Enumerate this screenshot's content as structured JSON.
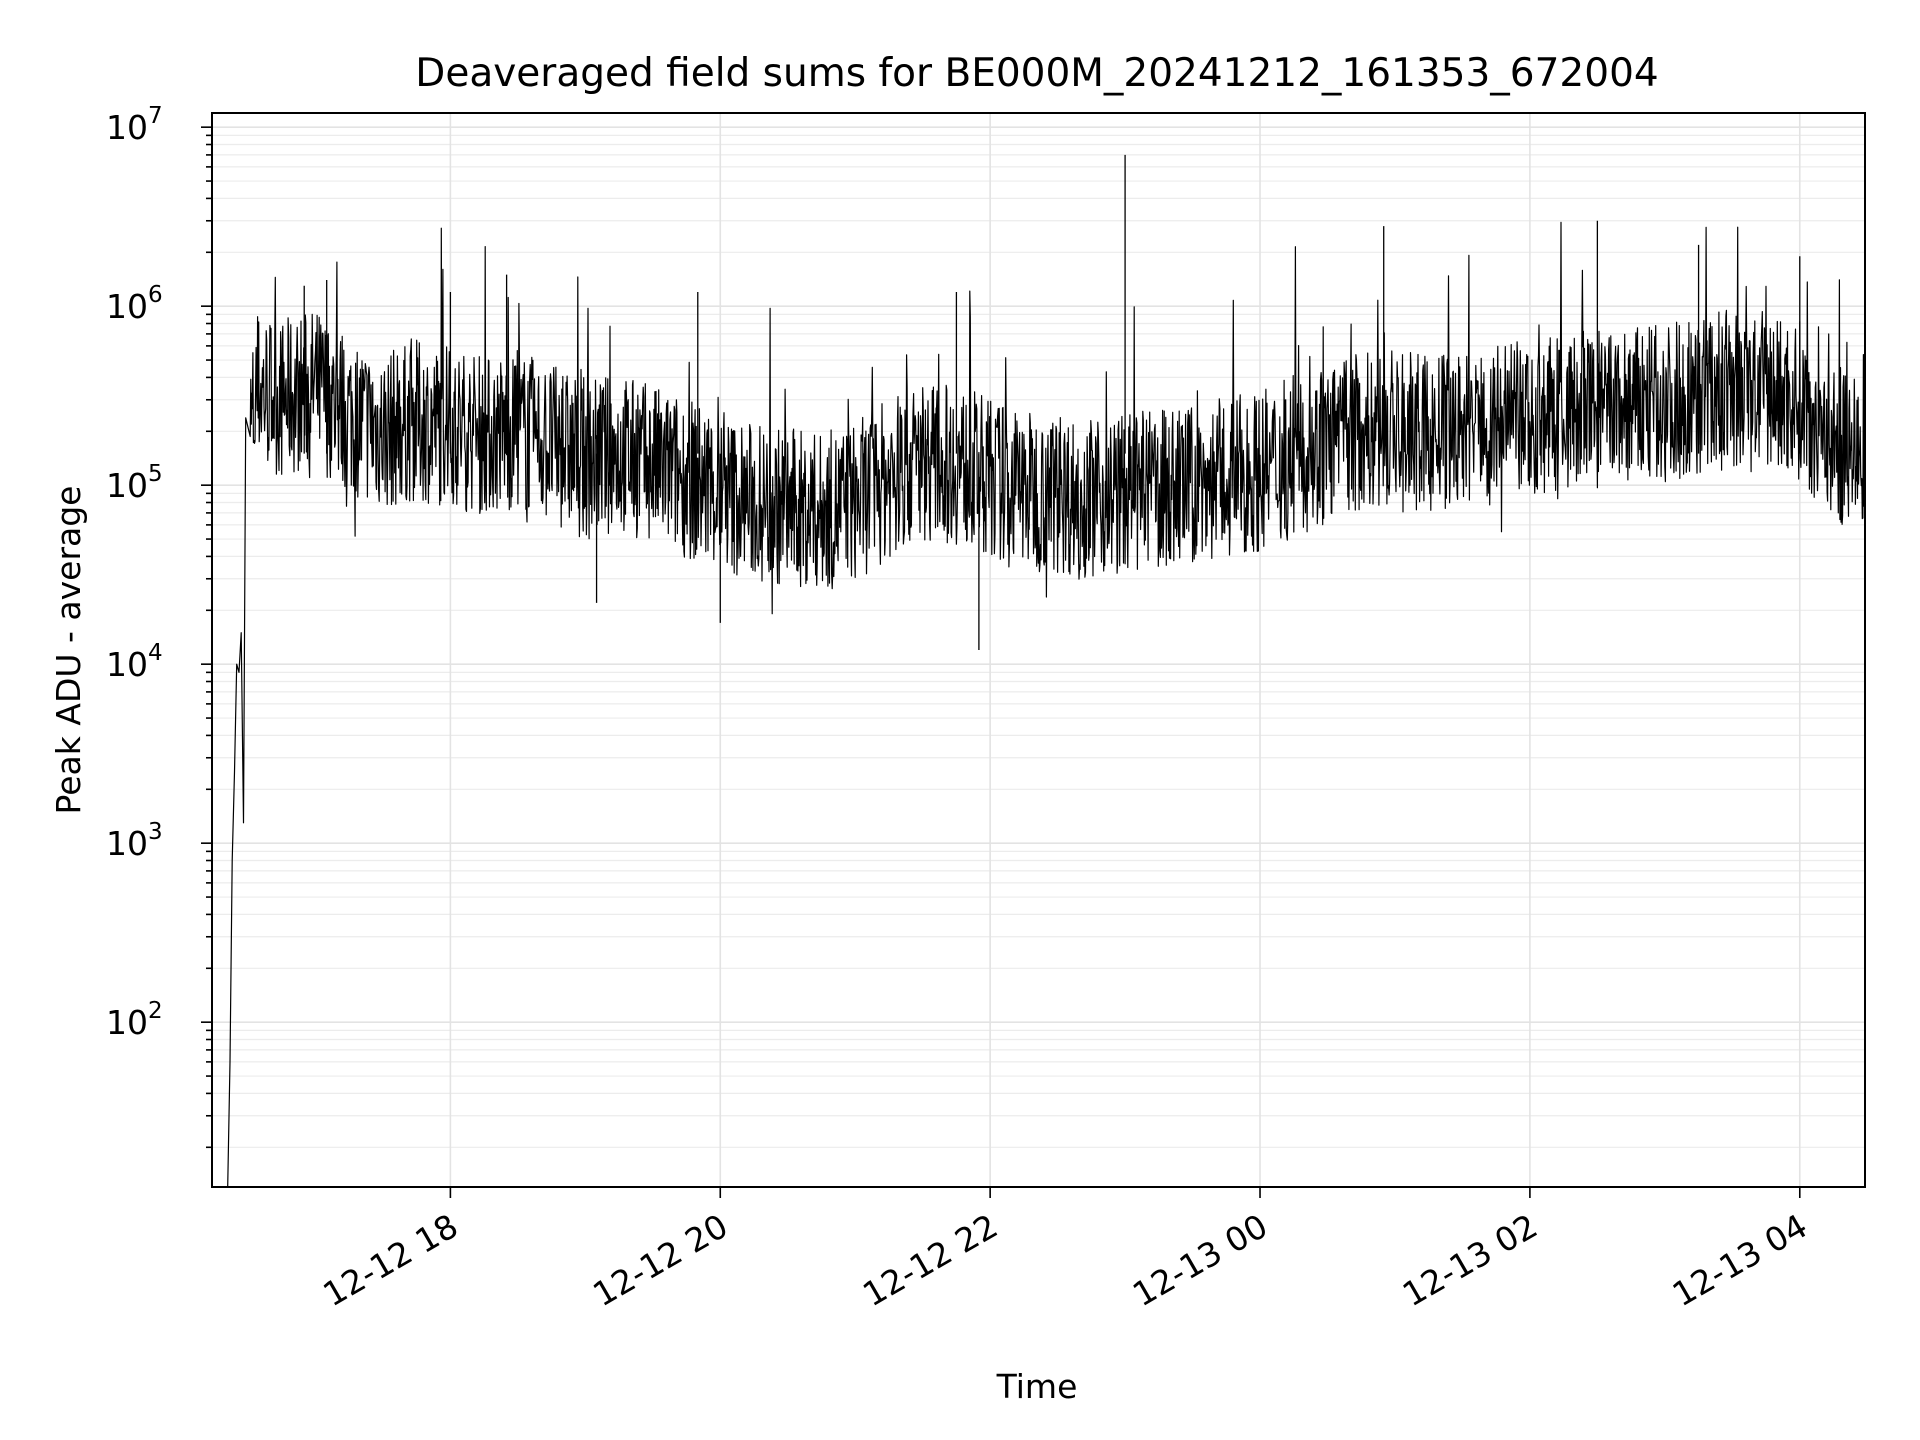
{
  "chart_data": {
    "type": "line",
    "title": "Deaveraged field sums for BE000M_20241212_161353_672004",
    "xlabel": "Time",
    "ylabel": "Peak ADU - average",
    "yscale": "log",
    "xlim": [
      "2024-12-12T16:14",
      "2024-12-13T04:29"
    ],
    "ylim": [
      12,
      12000000
    ],
    "grid": true,
    "line_color": "#000000",
    "x_ticks": [
      "12-12 18",
      "12-12 20",
      "12-12 22",
      "12-13 00",
      "12-13 02",
      "12-13 04"
    ],
    "y_ticks": [
      {
        "base": "10",
        "exp": "2",
        "value": 100
      },
      {
        "base": "10",
        "exp": "3",
        "value": 1000
      },
      {
        "base": "10",
        "exp": "4",
        "value": 10000
      },
      {
        "base": "10",
        "exp": "5",
        "value": 100000
      },
      {
        "base": "10",
        "exp": "6",
        "value": 1000000
      },
      {
        "base": "10",
        "exp": "7",
        "value": 10000000
      }
    ],
    "series": [
      {
        "points": [
          [
            "2024-12-12T16:21",
            12
          ],
          [
            "2024-12-12T16:22",
            60
          ],
          [
            "2024-12-12T16:23",
            800
          ],
          [
            "2024-12-12T16:24",
            2500
          ],
          [
            "2024-12-12T16:25",
            10000
          ],
          [
            "2024-12-12T16:26",
            9000
          ],
          [
            "2024-12-12T16:27",
            15000
          ],
          [
            "2024-12-12T16:28",
            1300
          ],
          [
            "2024-12-12T16:29",
            90000
          ],
          [
            "2024-12-12T16:31",
            200000
          ],
          [
            "2024-12-12T16:35",
            350000
          ],
          [
            "2024-12-12T16:45",
            300000
          ],
          [
            "2024-12-12T17:00",
            350000
          ],
          [
            "2024-12-12T17:15",
            250000
          ],
          [
            "2024-12-12T17:30",
            200000
          ],
          [
            "2024-12-12T17:45",
            230000
          ],
          [
            "2024-12-12T18:00",
            210000
          ],
          [
            "2024-12-12T18:15",
            190000
          ],
          [
            "2024-12-12T18:30",
            200000
          ],
          [
            "2024-12-12T18:45",
            170000
          ],
          [
            "2024-12-12T19:00",
            140000
          ],
          [
            "2024-12-12T19:15",
            150000
          ],
          [
            "2024-12-12T19:30",
            130000
          ],
          [
            "2024-12-12T19:45",
            110000
          ],
          [
            "2024-12-12T20:00",
            90000
          ],
          [
            "2024-12-12T20:15",
            80000
          ],
          [
            "2024-12-12T20:30",
            75000
          ],
          [
            "2024-12-12T20:45",
            70000
          ],
          [
            "2024-12-12T21:00",
            80000
          ],
          [
            "2024-12-12T21:15",
            110000
          ],
          [
            "2024-12-12T21:30",
            140000
          ],
          [
            "2024-12-12T21:45",
            130000
          ],
          [
            "2024-12-12T22:00",
            110000
          ],
          [
            "2024-12-12T22:15",
            95000
          ],
          [
            "2024-12-12T22:30",
            90000
          ],
          [
            "2024-12-12T22:45",
            85000
          ],
          [
            "2024-12-12T23:00",
            90000
          ],
          [
            "2024-12-12T23:15",
            95000
          ],
          [
            "2024-12-12T23:30",
            100000
          ],
          [
            "2024-12-12T23:45",
            110000
          ],
          [
            "2024-12-13T00:00",
            120000
          ],
          [
            "2024-12-13T00:15",
            140000
          ],
          [
            "2024-12-13T00:30",
            170000
          ],
          [
            "2024-12-13T00:45",
            200000
          ],
          [
            "2024-12-13T01:00",
            200000
          ],
          [
            "2024-12-13T01:15",
            190000
          ],
          [
            "2024-12-13T01:30",
            200000
          ],
          [
            "2024-12-13T01:45",
            220000
          ],
          [
            "2024-12-13T02:00",
            230000
          ],
          [
            "2024-12-13T02:15",
            250000
          ],
          [
            "2024-12-13T02:30",
            260000
          ],
          [
            "2024-12-13T02:45",
            270000
          ],
          [
            "2024-12-13T03:00",
            290000
          ],
          [
            "2024-12-13T03:15",
            320000
          ],
          [
            "2024-12-13T03:30",
            340000
          ],
          [
            "2024-12-13T03:45",
            330000
          ],
          [
            "2024-12-13T04:00",
            300000
          ],
          [
            "2024-12-13T04:15",
            170000
          ],
          [
            "2024-12-13T04:29",
            150000
          ]
        ],
        "spikes": [
          [
            "2024-12-12T16:55",
            1300000
          ],
          [
            "2024-12-12T17:05",
            1400000
          ],
          [
            "2024-12-12T18:00",
            1200000
          ],
          [
            "2024-12-12T18:25",
            1500000
          ],
          [
            "2024-12-12T19:50",
            1200000
          ],
          [
            "2024-12-12T21:45",
            1200000
          ],
          [
            "2024-12-12T21:55",
            12000
          ],
          [
            "2024-12-12T23:00",
            7000000
          ],
          [
            "2024-12-13T00:55",
            2800000
          ],
          [
            "2024-12-13T02:30",
            3000000
          ],
          [
            "2024-12-13T03:15",
            2200000
          ],
          [
            "2024-12-13T04:00",
            1900000
          ],
          [
            "2024-12-12T20:00",
            17000
          ],
          [
            "2024-12-12T19:05",
            22000
          ]
        ]
      }
    ]
  }
}
